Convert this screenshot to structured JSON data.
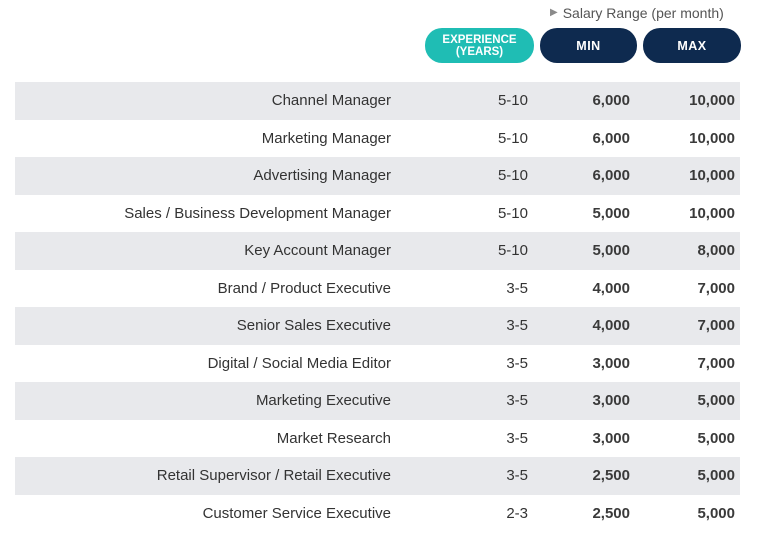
{
  "header": {
    "salary_range_label": "Salary Range (per month)",
    "experience_label_line1": "EXPERIENCE",
    "experience_label_line2": "(YEARS)",
    "min_label": "MIN",
    "max_label": "MAX"
  },
  "colors": {
    "experience_pill": "#1fbdb4",
    "min_max_pill": "#0e2a4f",
    "row_shade": "#e8e9ec"
  },
  "rows": [
    {
      "title": "Channel Manager",
      "experience": "5-10",
      "min": "6,000",
      "max": "10,000"
    },
    {
      "title": "Marketing Manager",
      "experience": "5-10",
      "min": "6,000",
      "max": "10,000"
    },
    {
      "title": "Advertising Manager",
      "experience": "5-10",
      "min": "6,000",
      "max": "10,000"
    },
    {
      "title": "Sales / Business Development Manager",
      "experience": "5-10",
      "min": "5,000",
      "max": "10,000"
    },
    {
      "title": "Key Account Manager",
      "experience": "5-10",
      "min": "5,000",
      "max": "8,000"
    },
    {
      "title": "Brand / Product Executive",
      "experience": "3-5",
      "min": "4,000",
      "max": "7,000"
    },
    {
      "title": "Senior Sales Executive",
      "experience": "3-5",
      "min": "4,000",
      "max": "7,000"
    },
    {
      "title": "Digital / Social Media Editor",
      "experience": "3-5",
      "min": "3,000",
      "max": "7,000"
    },
    {
      "title": "Marketing Executive",
      "experience": "3-5",
      "min": "3,000",
      "max": "5,000"
    },
    {
      "title": "Market Research",
      "experience": "3-5",
      "min": "3,000",
      "max": "5,000"
    },
    {
      "title": "Retail Supervisor / Retail Executive",
      "experience": "3-5",
      "min": "2,500",
      "max": "5,000"
    },
    {
      "title": "Customer Service Executive",
      "experience": "2-3",
      "min": "2,500",
      "max": "5,000"
    }
  ]
}
